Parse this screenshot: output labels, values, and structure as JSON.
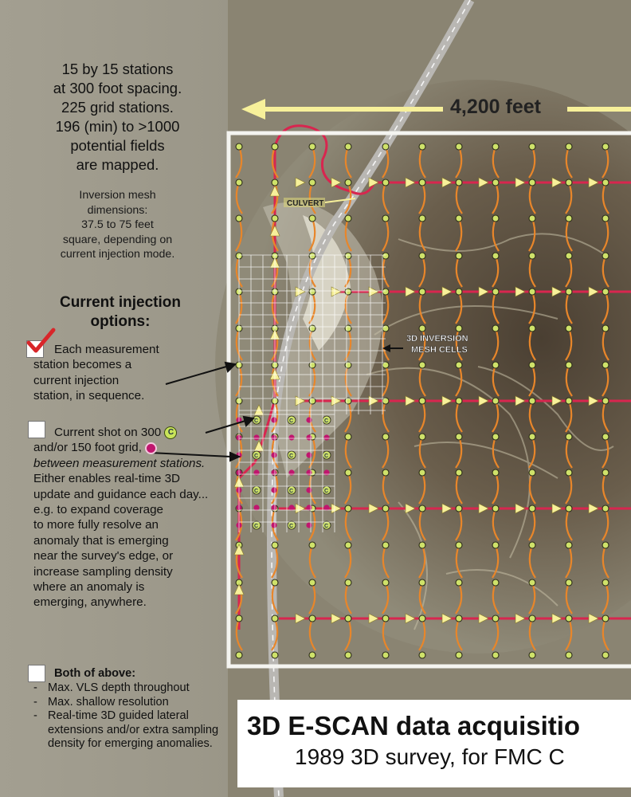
{
  "summary": {
    "lines": [
      "15 by 15 stations",
      "at 300 foot spacing.",
      "225 grid stations.",
      "196 (min) to >1000",
      "potential fields",
      "are mapped."
    ]
  },
  "mesh_note": {
    "lines": [
      "Inversion mesh",
      "dimensions:",
      "37.5 to 75 feet",
      "square, depending on",
      "current injection mode."
    ]
  },
  "options": {
    "title_lines": [
      "Current injection",
      "options:"
    ],
    "option1": {
      "checked": true,
      "lines": [
        "Each measurement",
        "station becomes a",
        "current injection",
        "station, in sequence."
      ]
    },
    "option2": {
      "checked": false,
      "text_a": "Current shot on 300",
      "c_marker": "C",
      "text_b": "and/or 150 foot grid,",
      "text_c_italic": "between measurement stations.",
      "text_d": "Either enables real-time 3D update and guidance each day...",
      "lines_rest": [
        "e.g. to expand coverage",
        "to more fully resolve an",
        "anomaly that is emerging",
        "near the survey's edge, or",
        "increase sampling density",
        "where an anomaly is",
        "emerging, anywhere."
      ]
    },
    "option3": {
      "checked": false,
      "heading": "Both of above:",
      "items": [
        "Max. VLS depth throughout",
        "Max. shallow resolution",
        "Real-time 3D guided lateral extensions and/or extra sampling density for emerging anomalies."
      ]
    }
  },
  "map": {
    "distance_label": "4,200 feet",
    "culvert_label": "CULVERT",
    "mesh_label_line1": "3D INVERSION",
    "mesh_label_line2": "MESH CELLS",
    "station_marker_label": "C",
    "grid_stations_per_side": 15,
    "station_spacing_ft": 300
  },
  "title": {
    "line1": "3D E-SCAN data acquisitio",
    "line2": "1989 3D survey, for FMC C"
  },
  "colors": {
    "survey_border": "#f4f4f0",
    "pink_line": "#d8264f",
    "orange_curve": "#e8862a",
    "station_fill": "#cfe26a",
    "arrow_yellow": "#f7f09a",
    "magenta_station": "#c0166e",
    "check_red": "#d8262a"
  }
}
